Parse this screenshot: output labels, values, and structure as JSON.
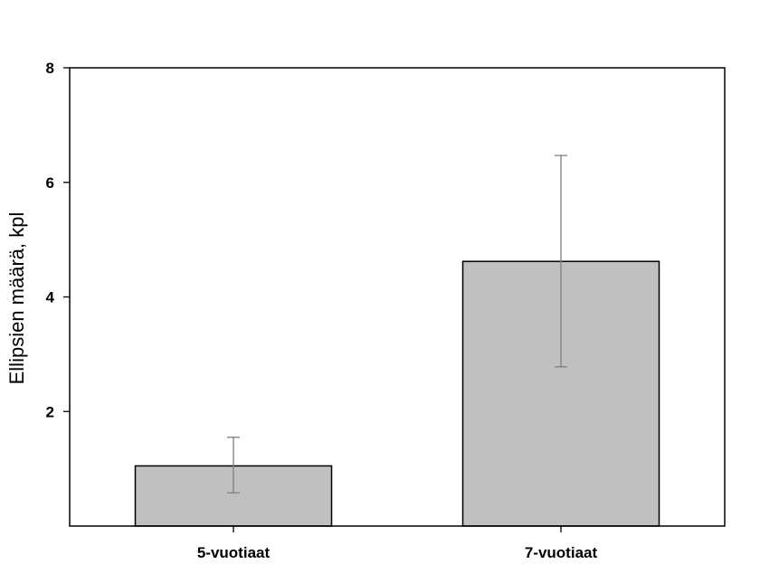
{
  "chart_data": {
    "type": "bar",
    "title": "",
    "xlabel": "",
    "ylabel": "Ellipsien määrä, kpl",
    "categories": [
      "5-vuotiaat",
      "7-vuotiaat"
    ],
    "values": [
      1.05,
      4.62
    ],
    "error_low": [
      0.58,
      2.78
    ],
    "error_high": [
      1.55,
      6.47
    ],
    "ylim": [
      0,
      8
    ],
    "yticks": [
      2,
      4,
      6,
      8
    ],
    "ytick_labels": [
      "2",
      "4",
      "6",
      "8"
    ],
    "grid": false,
    "colors": {
      "bar_fill": "#c0c0c0",
      "bar_stroke": "#000000",
      "error_bar": "#7f7f7f",
      "axis": "#000000"
    }
  }
}
